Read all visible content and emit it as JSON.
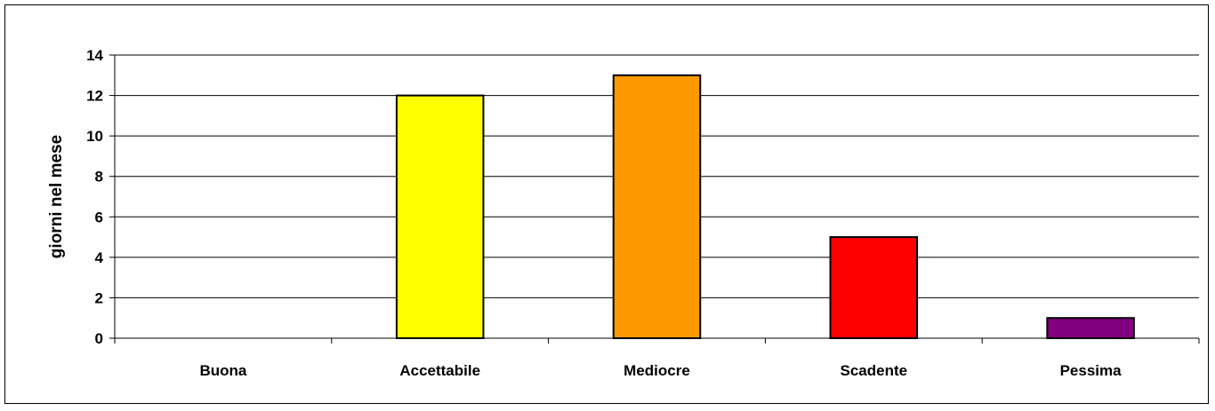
{
  "chart_data": {
    "type": "bar",
    "categories": [
      "Buona",
      "Accettabile",
      "Mediocre",
      "Scadente",
      "Pessima"
    ],
    "values": [
      0,
      12,
      13,
      5,
      1
    ],
    "colors": [
      "#ffffff",
      "#ffff00",
      "#ff9900",
      "#ff0000",
      "#800080"
    ],
    "title": "",
    "xlabel": "",
    "ylabel": "giorni nel mese",
    "ylim": [
      0,
      14
    ],
    "yticks": [
      "0",
      "2",
      "4",
      "6",
      "8",
      "10",
      "12",
      "14"
    ],
    "grid": true,
    "legend": "none"
  }
}
